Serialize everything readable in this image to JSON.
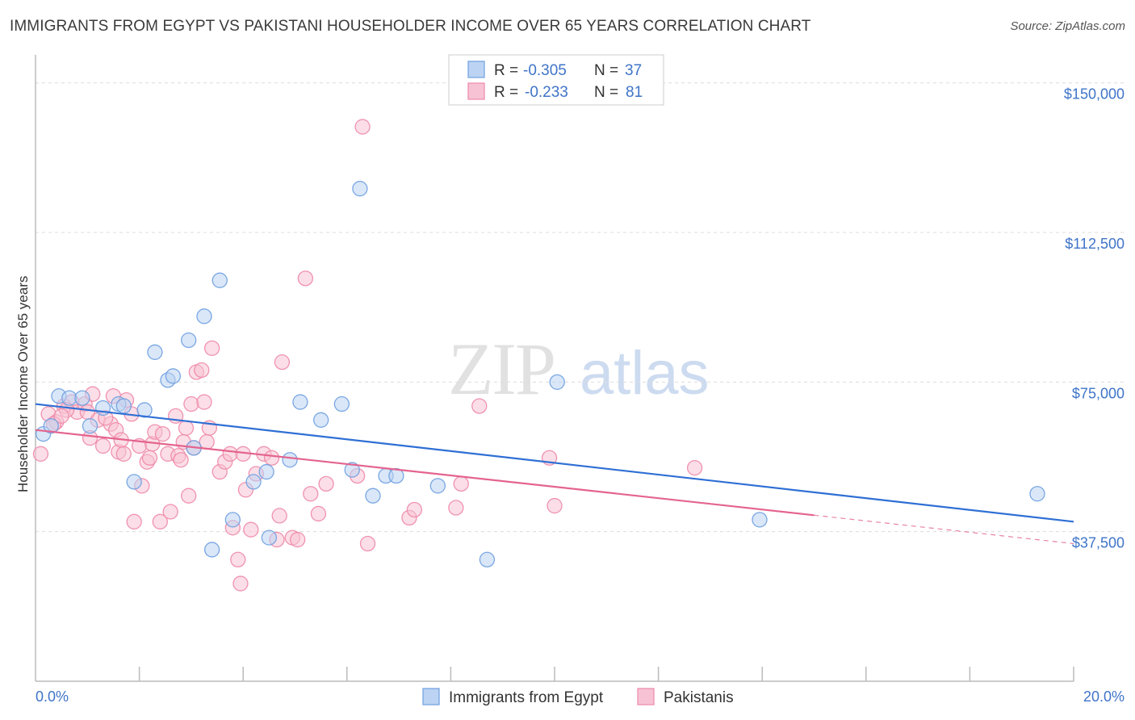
{
  "header": {
    "title": "IMMIGRANTS FROM EGYPT VS PAKISTANI HOUSEHOLDER INCOME OVER 65 YEARS CORRELATION CHART",
    "source": "Source: ZipAtlas.com"
  },
  "watermark": {
    "zip": "ZIP",
    "atlas": "atlas"
  },
  "legend": {
    "rows": [
      {
        "r_label": "R =",
        "r_value": "-0.305",
        "n_label": "N =",
        "n_value": "37",
        "color": "#6d9fe0"
      },
      {
        "r_label": "R =",
        "r_value": "-0.233",
        "n_label": "N =",
        "n_value": "81",
        "color": "#ee88a9"
      }
    ]
  },
  "chart_data": {
    "type": "scatter",
    "title": "IMMIGRANTS FROM EGYPT VS PAKISTANI HOUSEHOLDER INCOME OVER 65 YEARS CORRELATION CHART",
    "xlabel": "",
    "ylabel": "Householder Income Over 65 years",
    "xlim": [
      0,
      20
    ],
    "ylim": [
      0,
      155000
    ],
    "x_tick_labels": [
      "0.0%",
      "20.0%"
    ],
    "y_ticks": [
      {
        "value": 37500,
        "label": "$37,500"
      },
      {
        "value": 75000,
        "label": "$75,000"
      },
      {
        "value": 112500,
        "label": "$112,500"
      },
      {
        "value": 150000,
        "label": "$150,000"
      }
    ],
    "grid": true,
    "legend_position": "bottom",
    "series": [
      {
        "name": "Immigrants from Egypt",
        "color": "#6d9fe0",
        "fill": "#bcd3f3",
        "points": [
          [
            0.15,
            62000
          ],
          [
            0.3,
            64000
          ],
          [
            0.45,
            71500
          ],
          [
            0.65,
            71000
          ],
          [
            0.9,
            71000
          ],
          [
            1.05,
            64000
          ],
          [
            1.3,
            68500
          ],
          [
            1.6,
            69500
          ],
          [
            2.1,
            68000
          ],
          [
            1.9,
            50000
          ],
          [
            2.3,
            82500
          ],
          [
            2.55,
            75500
          ],
          [
            2.65,
            76500
          ],
          [
            2.95,
            85500
          ],
          [
            3.05,
            58500
          ],
          [
            3.25,
            91500
          ],
          [
            3.55,
            100500
          ],
          [
            3.4,
            33000
          ],
          [
            3.8,
            40500
          ],
          [
            4.2,
            50000
          ],
          [
            4.45,
            52500
          ],
          [
            4.5,
            36000
          ],
          [
            4.9,
            55500
          ],
          [
            5.1,
            70000
          ],
          [
            5.5,
            65500
          ],
          [
            5.9,
            69500
          ],
          [
            6.1,
            53000
          ],
          [
            6.25,
            123500
          ],
          [
            6.5,
            46500
          ],
          [
            6.75,
            51500
          ],
          [
            6.95,
            51500
          ],
          [
            7.75,
            49000
          ],
          [
            8.7,
            30500
          ],
          [
            10.05,
            75000
          ],
          [
            13.95,
            40500
          ],
          [
            19.3,
            47000
          ],
          [
            1.7,
            69000
          ]
        ],
        "trend": {
          "x0": 0,
          "y0": 69500,
          "x1": 20,
          "y1": 40000
        }
      },
      {
        "name": "Pakistanis",
        "color": "#ee88a9",
        "fill": "#f7c3d4",
        "points": [
          [
            0.1,
            57000
          ],
          [
            0.25,
            67000
          ],
          [
            0.4,
            65000
          ],
          [
            0.55,
            69000
          ],
          [
            0.7,
            70000
          ],
          [
            0.8,
            67500
          ],
          [
            0.95,
            69500
          ],
          [
            1.05,
            61000
          ],
          [
            1.2,
            65500
          ],
          [
            1.3,
            59000
          ],
          [
            1.45,
            64500
          ],
          [
            1.5,
            71500
          ],
          [
            1.6,
            57500
          ],
          [
            1.7,
            57000
          ],
          [
            1.75,
            70500
          ],
          [
            1.85,
            67000
          ],
          [
            1.9,
            40000
          ],
          [
            2.0,
            59000
          ],
          [
            2.05,
            49000
          ],
          [
            2.15,
            55000
          ],
          [
            2.25,
            59500
          ],
          [
            2.3,
            62500
          ],
          [
            2.4,
            40000
          ],
          [
            2.45,
            62000
          ],
          [
            2.55,
            57000
          ],
          [
            2.6,
            42500
          ],
          [
            2.7,
            66500
          ],
          [
            2.75,
            56500
          ],
          [
            2.85,
            60000
          ],
          [
            2.9,
            63500
          ],
          [
            2.95,
            46500
          ],
          [
            3.0,
            69500
          ],
          [
            3.1,
            77500
          ],
          [
            3.2,
            78000
          ],
          [
            3.25,
            70000
          ],
          [
            3.35,
            63500
          ],
          [
            3.4,
            83500
          ],
          [
            3.55,
            52500
          ],
          [
            3.65,
            55000
          ],
          [
            3.75,
            57000
          ],
          [
            3.8,
            38500
          ],
          [
            3.9,
            30500
          ],
          [
            3.95,
            24500
          ],
          [
            4.0,
            57000
          ],
          [
            4.05,
            48000
          ],
          [
            4.15,
            38000
          ],
          [
            4.4,
            57000
          ],
          [
            4.55,
            56000
          ],
          [
            4.65,
            35500
          ],
          [
            4.7,
            41500
          ],
          [
            4.75,
            80000
          ],
          [
            4.95,
            36000
          ],
          [
            5.05,
            35500
          ],
          [
            5.2,
            101000
          ],
          [
            5.3,
            47000
          ],
          [
            5.45,
            42000
          ],
          [
            5.6,
            49500
          ],
          [
            6.2,
            51500
          ],
          [
            6.3,
            139000
          ],
          [
            6.4,
            34500
          ],
          [
            7.2,
            41000
          ],
          [
            7.3,
            43000
          ],
          [
            8.1,
            43500
          ],
          [
            8.2,
            49500
          ],
          [
            8.55,
            69000
          ],
          [
            9.9,
            56000
          ],
          [
            10.0,
            44000
          ],
          [
            12.7,
            53500
          ],
          [
            1.1,
            72000
          ],
          [
            1.55,
            63000
          ],
          [
            1.65,
            60500
          ],
          [
            2.8,
            55500
          ],
          [
            3.05,
            58500
          ],
          [
            4.25,
            52000
          ],
          [
            0.35,
            64500
          ],
          [
            0.6,
            68000
          ],
          [
            0.5,
            66500
          ],
          [
            1.35,
            66000
          ],
          [
            1.0,
            67500
          ],
          [
            2.2,
            56000
          ],
          [
            3.3,
            60000
          ]
        ],
        "trend": {
          "x0": 0,
          "y0": 63000,
          "x1": 20,
          "y1": 34500,
          "solid_until": 15
        }
      }
    ]
  }
}
